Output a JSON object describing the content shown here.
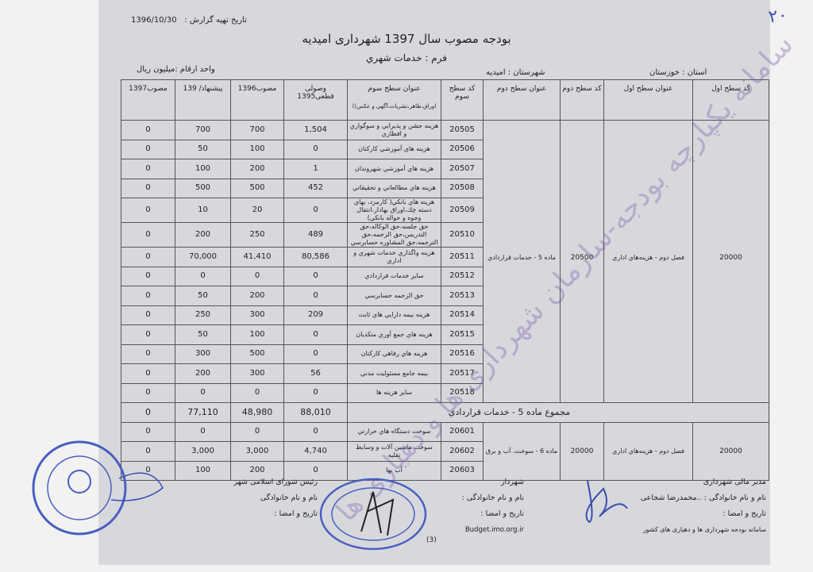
{
  "page_number_handwritten": "۲۰",
  "report_date_label": "تاریخ تهیه گزارش :",
  "report_date": "1396/10/30",
  "title": "بودجه مصوب سال 1397 شهرداری امیدیه",
  "form": "فرم : خدمات شهري",
  "province": "استان : خوزستان",
  "county": "شهرستان : امیدیه",
  "unit": "واحد ارقام :میلیون ریال",
  "headers": {
    "level1_code": "کد سطح اول",
    "level1_title": "عنوان سطح اول",
    "level2_code": "کد سطح دوم",
    "level2_title": "عنوان سطح دوم",
    "level3_code": "کد سطح سوم",
    "level3_title": "عنوان سطح سوم",
    "level3_sub": "اوراق،ظاهر،نشریات،آگهي و عکس))",
    "actual_1395": "وصولی قطعی1395",
    "approved_1396": "مصوب1396",
    "proposed_1397": "پیشنهاد/ 139",
    "approved_1397": "مصوب1397"
  },
  "group1": {
    "level1_code": "20000",
    "level1_title": "فصل دوم - هزینه‌هاي اداري",
    "level2_code": "20500",
    "level2_title": "ماده 5 - خدمات قراردادي",
    "rows": [
      {
        "code": "20505",
        "title": "هزينه جشن و پذيرايي و سوگواري و افطاري",
        "actual_1395": "1,504",
        "approved_1396": "700",
        "proposed_1397": "700",
        "approved_1397": "0"
      },
      {
        "code": "20506",
        "title": "هزينه هاي آموزشي كاركنان",
        "actual_1395": "0",
        "approved_1396": "100",
        "proposed_1397": "50",
        "approved_1397": "0"
      },
      {
        "code": "20507",
        "title": "هزينه هاي آموزشي شهروندان",
        "actual_1395": "1",
        "approved_1396": "200",
        "proposed_1397": "100",
        "approved_1397": "0"
      },
      {
        "code": "20508",
        "title": "هزينه هاي مطالعاتي و تحقيقاتي",
        "actual_1395": "452",
        "approved_1396": "500",
        "proposed_1397": "500",
        "approved_1397": "0"
      },
      {
        "code": "20509",
        "title": "هزينه هاي بانكي( كارمزد، بهاي دسته چك،اوراق بهادار،انتقال وجوه و حواله بانكي)",
        "actual_1395": "0",
        "approved_1396": "20",
        "proposed_1397": "10",
        "approved_1397": "0",
        "tall": true
      },
      {
        "code": "20510",
        "title": "حق جلسه،حق الوكاله،حق التدريس،حق الزحمه،حق الترجمه،حق المشاوره حسابرسي",
        "actual_1395": "489",
        "approved_1396": "250",
        "proposed_1397": "200",
        "approved_1397": "0",
        "tall": true
      },
      {
        "code": "20511",
        "title": "هزينه واگذاري خدمات شهري و اداري",
        "actual_1395": "80,586",
        "approved_1396": "41,410",
        "proposed_1397": "70,000",
        "approved_1397": "0"
      },
      {
        "code": "20512",
        "title": "ساير خدمات قراردادي",
        "actual_1395": "0",
        "approved_1396": "0",
        "proposed_1397": "0",
        "approved_1397": "0"
      },
      {
        "code": "20513",
        "title": "حق الزحمه حسابرسي",
        "actual_1395": "0",
        "approved_1396": "200",
        "proposed_1397": "50",
        "approved_1397": "0"
      },
      {
        "code": "20514",
        "title": "هزينه بيمه دارايي هاي ثابت",
        "actual_1395": "209",
        "approved_1396": "300",
        "proposed_1397": "250",
        "approved_1397": "0"
      },
      {
        "code": "20515",
        "title": "هزينه هاي جمع آوري متكديان",
        "actual_1395": "0",
        "approved_1396": "100",
        "proposed_1397": "50",
        "approved_1397": "0"
      },
      {
        "code": "20516",
        "title": "هزينه هاي رفاهي كاركنان",
        "actual_1395": "0",
        "approved_1396": "500",
        "proposed_1397": "300",
        "approved_1397": "0"
      },
      {
        "code": "20517",
        "title": "بيمه جامع مسئوليت مدني",
        "actual_1395": "56",
        "approved_1396": "300",
        "proposed_1397": "200",
        "approved_1397": "0"
      },
      {
        "code": "20518",
        "title": "ساير هزينه ها",
        "actual_1395": "0",
        "approved_1396": "0",
        "proposed_1397": "0",
        "approved_1397": "0"
      }
    ],
    "total": {
      "label": "مجموع ماده 5 - خدمات قراردادي",
      "actual_1395": "88,010",
      "approved_1396": "48,980",
      "proposed_1397": "77,110",
      "approved_1397": "0"
    }
  },
  "group2": {
    "level1_code": "20000",
    "level1_title": "فصل دوم - هزینه‌هاي اداري",
    "level2_code": "20000",
    "level2_title": "ماده 6 - سوخت، آب و برق",
    "rows": [
      {
        "code": "20601",
        "title": "سوخت دستگاه هاي حرارتي",
        "actual_1395": "0",
        "approved_1396": "0",
        "proposed_1397": "0",
        "approved_1397": "0"
      },
      {
        "code": "20602",
        "title": "سوخت ماشين آلات و وسايط نقليه",
        "actual_1395": "4,740",
        "approved_1396": "3,000",
        "proposed_1397": "3,000",
        "approved_1397": "0"
      },
      {
        "code": "20603",
        "title": "آب بها",
        "actual_1395": "0",
        "approved_1396": "200",
        "proposed_1397": "100",
        "approved_1397": "0"
      }
    ]
  },
  "signatures": {
    "finance": {
      "role": "مدیر مالی شهرداری",
      "name": "نام و نام خانوادگی : ..محمدرضا شجاعی",
      "date": "تاریخ و امضا :",
      "footer": "سامانه بودجه شهرداری ها و دهیاری های کشور"
    },
    "mayor": {
      "role": "شهردار",
      "name": "نام و نام خانوادگی :",
      "date": "تاریخ و امضا :",
      "site": "Budget.imo.org.ir"
    },
    "council": {
      "role": "رئیس شورای اسلامی شهر",
      "name": "نام و نام خانوادگی",
      "date": "تاریخ و امضا :"
    }
  },
  "page_number": "(3)",
  "watermark": "سامانه یکپارچه بودجه-سازمان شهرداری ها و دهیاری ها",
  "stamp_text": "شورای اسلامی شهر امیدیه - دوره پنجم - استان خوزستان",
  "colors": {
    "paper": "#d7d8dc",
    "ink_stamp": "#4a5fc0",
    "watermark": "#7a5aaa"
  }
}
